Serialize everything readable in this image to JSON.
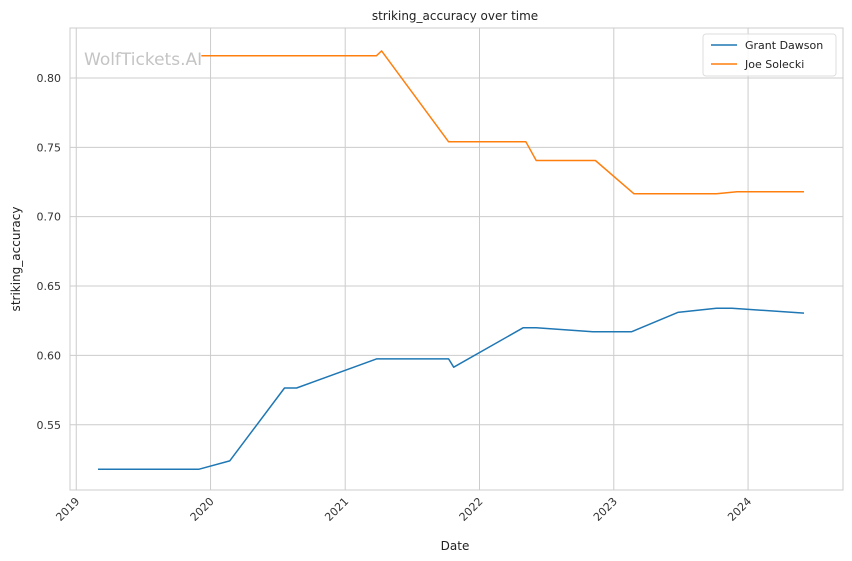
{
  "chart_data": {
    "type": "line",
    "title": "striking_accuracy over time",
    "xlabel": "Date",
    "ylabel": "striking_accuracy",
    "watermark": "WolfTickets.AI",
    "x_ticks": [
      "2019",
      "2020",
      "2021",
      "2022",
      "2023",
      "2024"
    ],
    "y_ticks": [
      "0.55",
      "0.60",
      "0.65",
      "0.70",
      "0.75",
      "0.80"
    ],
    "xlim": [
      "2018-12-15",
      "2024-09-15"
    ],
    "ylim": [
      0.503,
      0.836
    ],
    "grid": true,
    "legend_position": "top-right",
    "series": [
      {
        "name": "Grant Dawson",
        "color": "#1f77b4",
        "points": [
          [
            "2019-03-01",
            0.518
          ],
          [
            "2019-12-01",
            0.518
          ],
          [
            "2020-02-22",
            0.524
          ],
          [
            "2020-07-20",
            0.5765
          ],
          [
            "2020-08-22",
            0.5765
          ],
          [
            "2021-03-27",
            0.5975
          ],
          [
            "2021-10-09",
            0.5975
          ],
          [
            "2021-10-23",
            0.5915
          ],
          [
            "2022-04-30",
            0.62
          ],
          [
            "2022-06-04",
            0.62
          ],
          [
            "2022-11-05",
            0.617
          ],
          [
            "2023-02-18",
            0.617
          ],
          [
            "2023-06-24",
            0.631
          ],
          [
            "2023-10-07",
            0.634
          ],
          [
            "2023-11-18",
            0.634
          ],
          [
            "2024-06-01",
            0.6305
          ]
        ]
      },
      {
        "name": "Joe Solecki",
        "color": "#ff7f0e",
        "points": [
          [
            "2019-12-07",
            0.816
          ],
          [
            "2021-03-27",
            0.816
          ],
          [
            "2021-04-10",
            0.8195
          ],
          [
            "2021-10-09",
            0.754
          ],
          [
            "2022-05-07",
            0.754
          ],
          [
            "2022-06-04",
            0.7405
          ],
          [
            "2022-11-12",
            0.7405
          ],
          [
            "2023-02-25",
            0.7165
          ],
          [
            "2023-10-07",
            0.7165
          ],
          [
            "2023-12-02",
            0.718
          ],
          [
            "2024-06-01",
            0.718
          ]
        ]
      }
    ]
  }
}
